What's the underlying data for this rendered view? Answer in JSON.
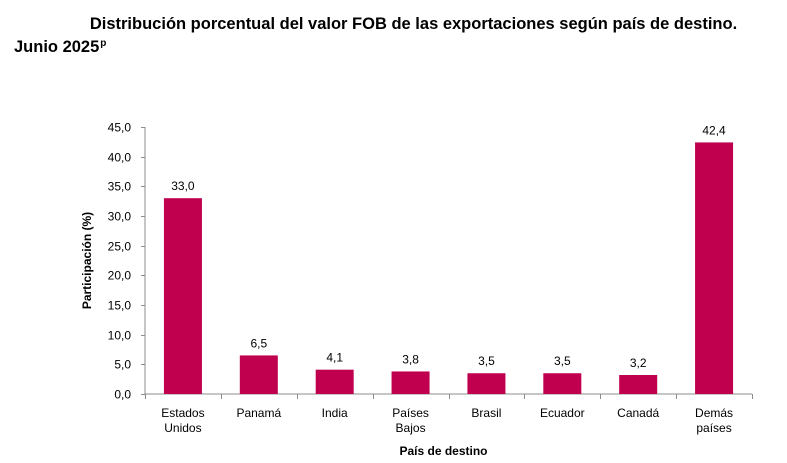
{
  "title": {
    "line1": "Distribución porcentual del valor FOB de las exportaciones según país de destino.",
    "line2": "Junio 2025",
    "superscript": "p"
  },
  "chart_data": {
    "type": "bar",
    "categories": [
      [
        "Estados",
        "Unidos"
      ],
      [
        "Panamá"
      ],
      [
        "India"
      ],
      [
        "Países",
        "Bajos"
      ],
      [
        "Brasil"
      ],
      [
        "Ecuador"
      ],
      [
        "Canadá"
      ],
      [
        "Demás",
        "países"
      ]
    ],
    "values": [
      33.0,
      6.5,
      4.1,
      3.8,
      3.5,
      3.5,
      3.2,
      42.4
    ],
    "value_labels": [
      "33,0",
      "6,5",
      "4,1",
      "3,8",
      "3,5",
      "3,5",
      "3,2",
      "42,4"
    ],
    "xlabel": "País de destino",
    "ylabel": "Participación (%)",
    "ylim": [
      0,
      45
    ],
    "yticks": [
      0,
      5,
      10,
      15,
      20,
      25,
      30,
      35,
      40,
      45
    ],
    "ytick_labels": [
      "0,0",
      "5,0",
      "10,0",
      "15,0",
      "20,0",
      "25,0",
      "30,0",
      "35,0",
      "40,0",
      "45,0"
    ],
    "bar_color": "#C0004F",
    "grid": false
  }
}
